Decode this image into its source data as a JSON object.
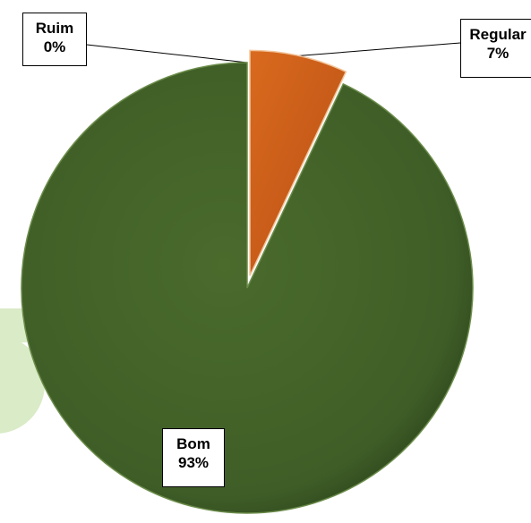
{
  "chart_data": {
    "type": "pie",
    "title": "",
    "slices": [
      {
        "name": "Ruim",
        "value": 0,
        "percent_label": "0%",
        "color": "#4a6b2c"
      },
      {
        "name": "Regular",
        "value": 7,
        "percent_label": "7%",
        "color": "#d2601a"
      },
      {
        "name": "Bom",
        "value": 93,
        "percent_label": "93%",
        "color": "#405e27"
      }
    ],
    "start_angle_deg": 0,
    "direction": "clockwise",
    "exploded_slice": "Regular",
    "legend": "none",
    "watermark_color": "#d9ebc7"
  }
}
